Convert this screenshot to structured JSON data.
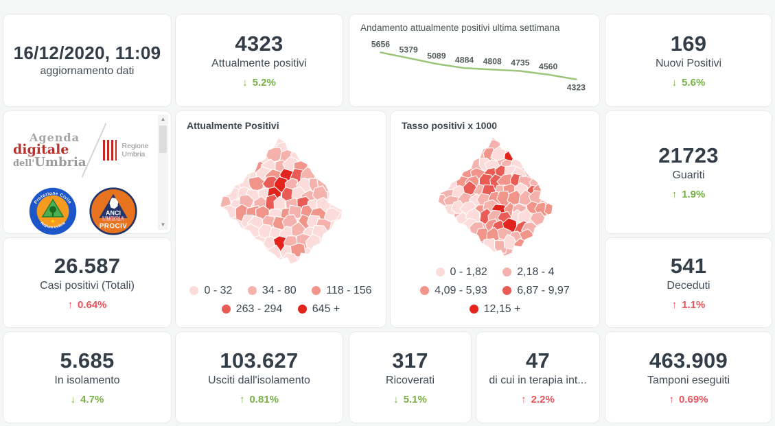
{
  "colors": {
    "positive_green": "#76b043",
    "negative_red": "#e8545a",
    "text_dark": "#333d47",
    "text_label": "#414c57"
  },
  "header_card": {
    "datetime": "16/12/2020, 11:09",
    "caption": "aggiornamento dati"
  },
  "stats": {
    "attualmente_positivi": {
      "value": "4323",
      "label": "Attualmente positivi",
      "arrow": "↓",
      "delta": "5.2%",
      "trend": "green"
    },
    "nuovi_positivi": {
      "value": "169",
      "label": "Nuovi Positivi",
      "arrow": "↓",
      "delta": "5.6%",
      "trend": "green"
    },
    "guariti": {
      "value": "21723",
      "label": "Guariti",
      "arrow": "↑",
      "delta": "1.9%",
      "trend": "green"
    },
    "casi_totali": {
      "value": "26.587",
      "label": "Casi positivi (Totali)",
      "arrow": "↑",
      "delta": "0.64%",
      "trend": "red"
    },
    "deceduti": {
      "value": "541",
      "label": "Deceduti",
      "arrow": "↑",
      "delta": "1.1%",
      "trend": "red"
    },
    "in_isolamento": {
      "value": "5.685",
      "label": "In isolamento",
      "arrow": "↓",
      "delta": "4.7%",
      "trend": "green"
    },
    "usciti_isolamento": {
      "value": "103.627",
      "label": "Usciti dall'isolamento",
      "arrow": "↑",
      "delta": "0.81%",
      "trend": "green"
    },
    "ricoverati": {
      "value": "317",
      "label": "Ricoverati",
      "arrow": "↓",
      "delta": "5.1%",
      "trend": "green"
    },
    "terapia_intensiva": {
      "value": "47",
      "label": "di cui in terapia int...",
      "arrow": "↑",
      "delta": "2.2%",
      "trend": "red"
    },
    "tamponi": {
      "value": "463.909",
      "label": "Tamponi eseguiti",
      "arrow": "↑",
      "delta": "0.69%",
      "trend": "red"
    }
  },
  "chart_data": {
    "type": "line",
    "title": "Andamento attualmente positivi ultima settimana",
    "series": [
      {
        "name": "Attualmente positivi ultima settimana",
        "values": [
          5656,
          5379,
          5089,
          4884,
          4808,
          4735,
          4560,
          4323
        ]
      }
    ],
    "data_labels": true,
    "line_color": "#9cc57a",
    "ylim": [
      4323,
      5656
    ],
    "grid": false,
    "legend_position": "none"
  },
  "maps": {
    "palette": [
      "#fbdcdb",
      "#f5b2ad",
      "#f1948a",
      "#e95c55",
      "#e3241d"
    ],
    "attualmente_positivi": {
      "title": "Attualmente Positivi",
      "legend": [
        {
          "label": "0 - 32",
          "color": "#fbdcdb"
        },
        {
          "label": "34 - 80",
          "color": "#f5b2ad"
        },
        {
          "label": "118 - 156",
          "color": "#f1948a"
        },
        {
          "label": "263 - 294",
          "color": "#e95c55"
        },
        {
          "label": "645 +",
          "color": "#e3241d"
        }
      ]
    },
    "tasso_positivi": {
      "title": "Tasso positivi x 1000",
      "legend": [
        {
          "label": "0 - 1,82",
          "color": "#fbdcdb"
        },
        {
          "label": "2,18 - 4",
          "color": "#f5b2ad"
        },
        {
          "label": "4,09 - 5,93",
          "color": "#f1948a"
        },
        {
          "label": "6,87 - 9,97",
          "color": "#e95c55"
        },
        {
          "label": "12,15 +",
          "color": "#e3241d"
        }
      ]
    }
  },
  "logos": {
    "agenda_digitale": {
      "line1": "Agenda",
      "line2": "digitale",
      "line3_small": "dell'",
      "line3": "Umbria"
    },
    "regione_umbria": {
      "label": "Regione Umbria"
    },
    "protezione_civile": {
      "arc_top": "Protezione Civile",
      "arc_bottom": "Regione Umbria"
    },
    "anci_prociv": {
      "line1": "ANCI",
      "line2": "UMBRIA",
      "line3": "PROCIV"
    }
  },
  "icons": {
    "scroll_up": "▲",
    "scroll_down": "▼"
  }
}
